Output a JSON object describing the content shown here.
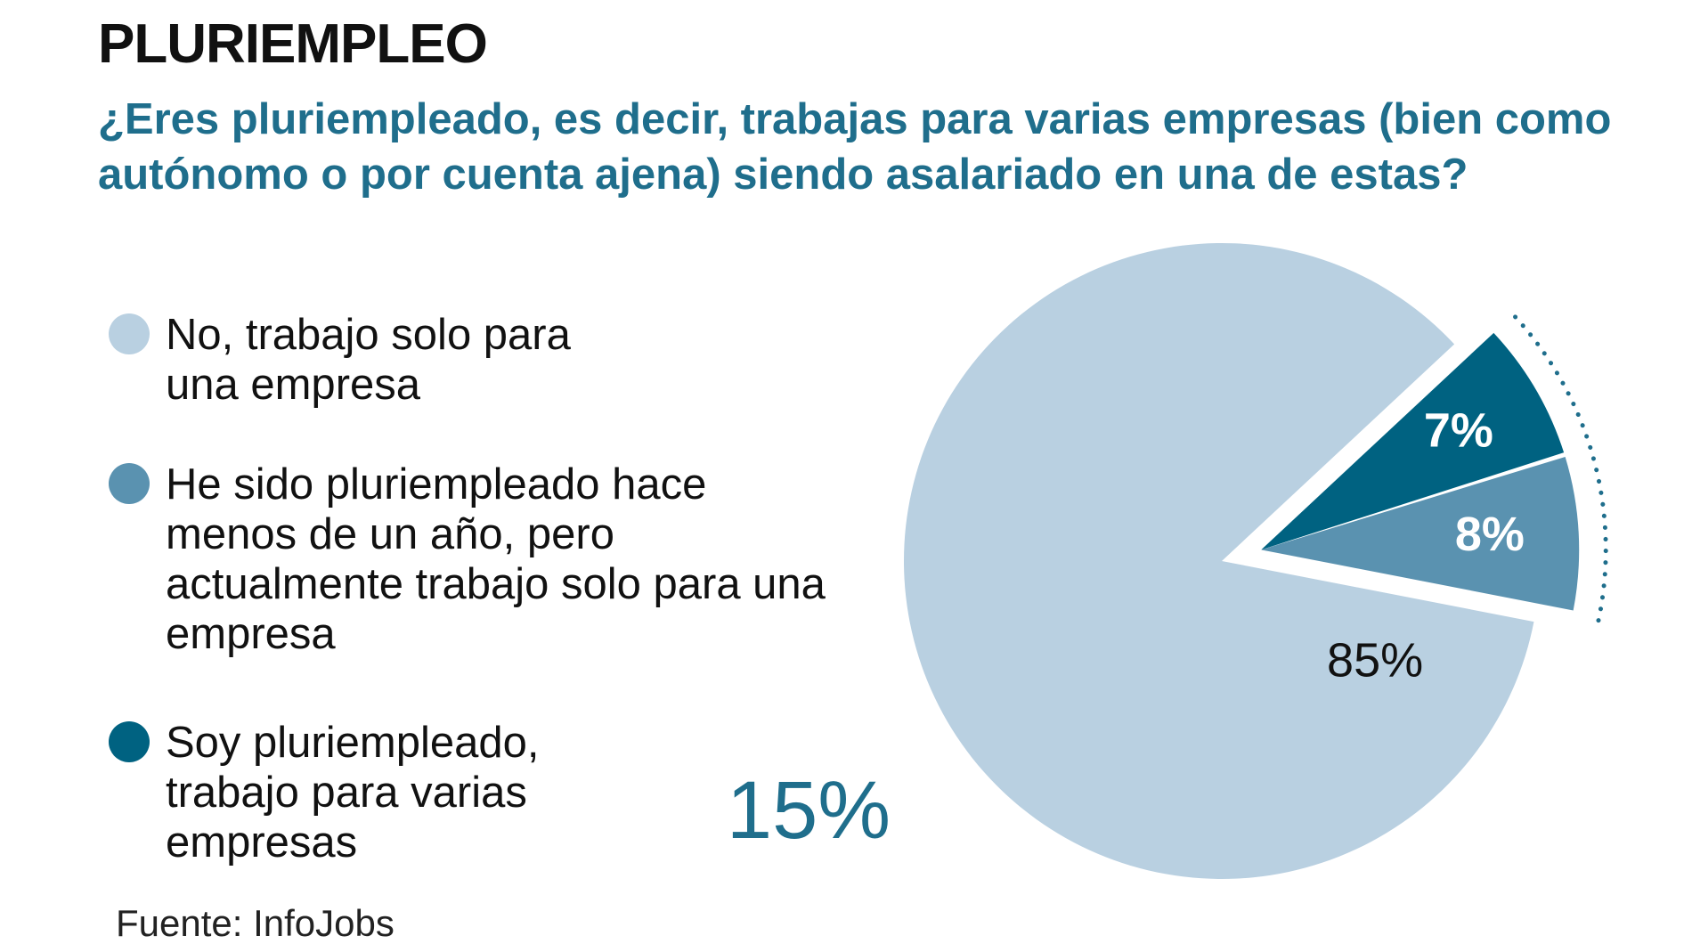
{
  "chart_data": {
    "type": "pie",
    "title": "PLURIEMPLEO",
    "subtitle": "¿Eres pluriempleado, es decir, trabajas para varias empresas (bien como autónomo o por cuenta ajena) siendo asalariado en una de estas?",
    "slices": [
      {
        "label": "No, trabajo solo para una empresa",
        "value": 85,
        "value_label": "85%",
        "color": "#b9d0e1",
        "label_color": "#111111",
        "label_weight": "400"
      },
      {
        "label": "He sido pluriempleado hace menos de un año, pero actualmente trabajo solo para una empresa",
        "value": 8,
        "value_label": "8%",
        "color": "#5a92b0",
        "label_color": "#ffffff",
        "label_weight": "700"
      },
      {
        "label": "Soy pluriempleado, trabajo para varias empresas",
        "value": 7,
        "value_label": "7%",
        "color": "#006281",
        "label_color": "#ffffff",
        "label_weight": "700"
      }
    ],
    "group_label": "15%",
    "group_color": "#1f6e8c",
    "legend_position": "left",
    "source": "Fuente: InfoJobs"
  }
}
